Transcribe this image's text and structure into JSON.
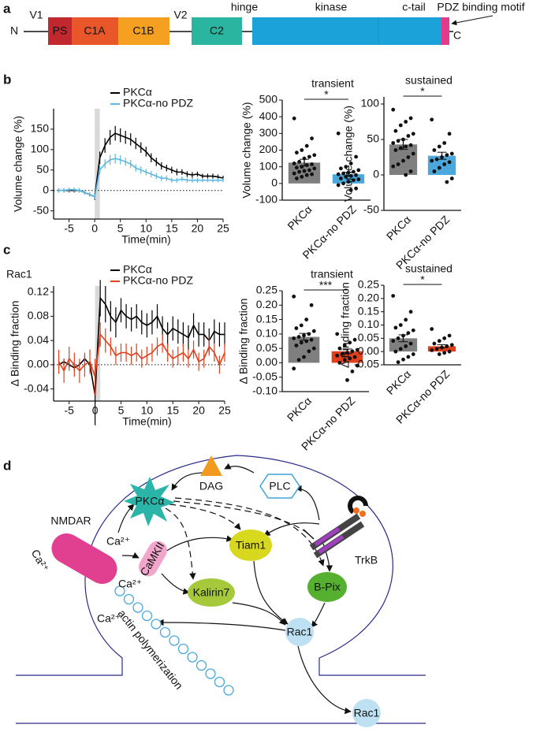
{
  "panel_labels": [
    "a",
    "b",
    "c",
    "d"
  ],
  "domain_diagram": {
    "n_term": "N",
    "v1": "V1",
    "ps": "PS",
    "c1a": "C1A",
    "c1b": "C1B",
    "v2": "V2",
    "c2": "C2",
    "hinge": "hinge",
    "kinase": "kinase",
    "c_tail": "c-tail",
    "pdz": "PDZ binding motif",
    "c_term": "C"
  },
  "chart_data": [
    {
      "type": "line",
      "ylabel": "Volume change (%)",
      "xlabel": "Time(min)",
      "legend": "upper right",
      "x": [
        -7,
        -6,
        -5,
        -4,
        -3,
        -2,
        -1,
        0,
        1,
        2,
        3,
        4,
        5,
        6,
        7,
        8,
        9,
        10,
        11,
        12,
        13,
        14,
        15,
        16,
        17,
        18,
        19,
        20,
        21,
        22,
        23,
        24,
        25
      ],
      "xlim": [
        -8,
        25
      ],
      "xticks": [
        -5,
        0,
        5,
        10,
        15,
        20,
        25
      ],
      "ylim": [
        -70,
        200
      ],
      "yticks": [
        -50,
        0,
        50,
        100,
        150
      ],
      "shaded_span": [
        0,
        1
      ],
      "series": [
        {
          "name": "PKCα",
          "color": "#000000",
          "values": [
            0,
            0,
            0,
            0,
            0,
            -5,
            -10,
            -15,
            80,
            110,
            130,
            140,
            135,
            130,
            125,
            115,
            105,
            95,
            80,
            70,
            60,
            55,
            50,
            45,
            45,
            40,
            38,
            40,
            35,
            35,
            35,
            33,
            30
          ],
          "errors": [
            5,
            5,
            5,
            5,
            5,
            5,
            5,
            8,
            15,
            18,
            18,
            18,
            17,
            16,
            15,
            14,
            13,
            12,
            11,
            10,
            9,
            8,
            8,
            8,
            7,
            7,
            7,
            6,
            6,
            6,
            6,
            6,
            6
          ]
        },
        {
          "name": "PKCα-no PDZ",
          "color": "#5bb8e2",
          "values": [
            0,
            0,
            2,
            2,
            0,
            -5,
            -10,
            -15,
            50,
            65,
            75,
            78,
            75,
            70,
            65,
            55,
            50,
            45,
            40,
            35,
            30,
            30,
            25,
            25,
            28,
            25,
            25,
            25,
            25,
            25,
            25,
            25,
            25
          ],
          "errors": [
            5,
            5,
            5,
            5,
            5,
            5,
            5,
            6,
            10,
            11,
            12,
            12,
            11,
            10,
            10,
            9,
            9,
            8,
            8,
            7,
            7,
            7,
            6,
            6,
            6,
            6,
            6,
            6,
            5,
            5,
            5,
            5,
            5
          ]
        }
      ]
    },
    {
      "type": "bar",
      "title": "transient",
      "ylabel": "Volume change (%)",
      "significance": "*",
      "categories": [
        "PKCα",
        "PKCα-no PDZ"
      ],
      "values": [
        125,
        55
      ],
      "errors": [
        20,
        12
      ],
      "colors": [
        "#7f7f7f",
        "#4aa8dc"
      ],
      "points": [
        [
          390,
          270,
          225,
          200,
          185,
          170,
          160,
          150,
          130,
          120,
          115,
          110,
          100,
          95,
          90,
          80,
          75,
          70,
          60,
          55,
          50,
          40,
          30
        ],
        [
          300,
          160,
          120,
          100,
          90,
          80,
          70,
          65,
          60,
          55,
          50,
          45,
          40,
          30,
          25,
          20,
          10,
          0,
          -10,
          -30,
          -40
        ]
      ],
      "ylim": [
        -100,
        500
      ],
      "yticks": [
        -100,
        0,
        100,
        200,
        300,
        400,
        500
      ]
    },
    {
      "type": "bar",
      "title": "sustained",
      "ylabel": "Volume change (%)",
      "significance": "*",
      "categories": [
        "PKCα",
        "PKCα-no PDZ"
      ],
      "values": [
        43,
        27
      ],
      "errors": [
        7,
        5
      ],
      "colors": [
        "#7f7f7f",
        "#4aa8dc"
      ],
      "points": [
        [
          92,
          80,
          75,
          70,
          62,
          58,
          55,
          50,
          48,
          45,
          42,
          40,
          38,
          35,
          30,
          25,
          20,
          15,
          12,
          5,
          0
        ],
        [
          78,
          58,
          45,
          40,
          35,
          30,
          28,
          25,
          22,
          20,
          18,
          15,
          10,
          5,
          -5,
          -10
        ]
      ],
      "ylim": [
        -50,
        110
      ],
      "yticks": [
        -50,
        0,
        50,
        100
      ]
    },
    {
      "type": "line",
      "ylabel": "Δ Binding fraction",
      "xlabel": "Time(min)",
      "annotation": "Rac1",
      "legend": "upper right",
      "x": [
        -7,
        -6,
        -5,
        -4,
        -3,
        -2,
        -1,
        0,
        1,
        2,
        3,
        4,
        5,
        6,
        7,
        8,
        9,
        10,
        11,
        12,
        13,
        14,
        15,
        16,
        17,
        18,
        19,
        20,
        21,
        22,
        23,
        24,
        25
      ],
      "xlim": [
        -8,
        25
      ],
      "xticks": [
        -5,
        0,
        5,
        10,
        15,
        20,
        25
      ],
      "ylim": [
        -0.06,
        0.13
      ],
      "yticks": [
        -0.04,
        {
          "value": 0,
          "label": "0.00"
        },
        0.04,
        0.08,
        0.12
      ],
      "shaded_span": [
        0,
        1
      ],
      "series": [
        {
          "name": "PKCα",
          "color": "#000000",
          "values": [
            0,
            0.005,
            0,
            -0.005,
            0,
            0.01,
            0,
            -0.05,
            0.11,
            0.1,
            0.08,
            0.07,
            0.09,
            0.08,
            0.075,
            0.08,
            0.07,
            0.065,
            0.07,
            0.08,
            0.06,
            0.05,
            0.06,
            0.055,
            0.05,
            0.045,
            0.065,
            0.05,
            0.05,
            0.04,
            0.055,
            0.05,
            0.05
          ],
          "errors": [
            0.005,
            0.005,
            0.005,
            0.005,
            0.005,
            0.005,
            0.005,
            0.05,
            0.03,
            0.03,
            0.025,
            0.025,
            0.02,
            0.02,
            0.02,
            0.02,
            0.02,
            0.02,
            0.02,
            0.02,
            0.02,
            0.02,
            0.02,
            0.02,
            0.02,
            0.02,
            0.02,
            0.02,
            0.02,
            0.02,
            0.02,
            0.02,
            0.02
          ]
        },
        {
          "name": "PKCα-no PDZ",
          "color": "#e0401c",
          "values": [
            0.005,
            -0.01,
            0.01,
            0,
            -0.01,
            0,
            0.005,
            -0.02,
            0.05,
            0.04,
            0.03,
            0.015,
            0.02,
            0.02,
            0.015,
            0.02,
            0.01,
            0.015,
            0.02,
            0.03,
            0.035,
            0.02,
            0.01,
            0.015,
            0.02,
            0.01,
            0.025,
            0.005,
            0.01,
            0.03,
            0.02,
            0,
            0.02
          ],
          "errors": [
            0.02,
            0.02,
            0.02,
            0.02,
            0.02,
            0.02,
            0.02,
            0.03,
            0.02,
            0.02,
            0.015,
            0.015,
            0.015,
            0.015,
            0.015,
            0.015,
            0.015,
            0.015,
            0.015,
            0.015,
            0.015,
            0.015,
            0.015,
            0.015,
            0.015,
            0.015,
            0.015,
            0.015,
            0.015,
            0.015,
            0.015,
            0.015,
            0.015
          ]
        }
      ]
    },
    {
      "type": "bar",
      "title": "transient",
      "ylabel": "Δ Binding fraction",
      "significance": "***",
      "categories": [
        "PKCα",
        "PKCα-no PDZ"
      ],
      "values": [
        0.09,
        0.04
      ],
      "errors": [
        0.012,
        0.008
      ],
      "colors": [
        "#7f7f7f",
        "#e0401c"
      ],
      "points": [
        [
          0.23,
          0.2,
          0.15,
          0.13,
          0.12,
          0.11,
          0.1,
          0.095,
          0.09,
          0.085,
          0.08,
          0.075,
          0.07,
          0.06,
          0.05,
          0.04,
          0.02,
          0.01,
          -0.02
        ],
        [
          0.1,
          0.08,
          0.07,
          0.06,
          0.05,
          0.045,
          0.04,
          0.035,
          0.03,
          0.025,
          0.02,
          0.015,
          0.01,
          0,
          -0.01,
          -0.03,
          -0.06
        ]
      ],
      "ylim": [
        -0.1,
        0.25
      ],
      "yticks": [
        {
          "value": -0.1,
          "label": "-0.10"
        },
        -0.05,
        {
          "value": 0,
          "label": "0.00"
        },
        0.05,
        {
          "value": 0.1,
          "label": "0.10"
        },
        0.15,
        {
          "value": 0.2,
          "label": "0.20"
        },
        0.25
      ]
    },
    {
      "type": "bar",
      "title": "sustained",
      "ylabel": "Δ Binding fraction",
      "significance": "*",
      "categories": [
        "PKCα",
        "PKCα-no PDZ"
      ],
      "values": [
        0.05,
        0.02
      ],
      "errors": [
        0.013,
        0.006
      ],
      "colors": [
        "#7f7f7f",
        "#e0401c"
      ],
      "points": [
        [
          0.21,
          0.15,
          0.12,
          0.1,
          0.09,
          0.08,
          0.07,
          0.06,
          0.05,
          0.04,
          0.03,
          0.02,
          0.01,
          0,
          -0.01,
          -0.02,
          -0.03,
          -0.04
        ],
        [
          0.085,
          0.06,
          0.05,
          0.04,
          0.03,
          0.025,
          0.02,
          0.015,
          0.01,
          0.005,
          0,
          -0.005,
          -0.01
        ]
      ],
      "ylim": [
        -0.05,
        0.25
      ],
      "yticks": [
        -0.05,
        {
          "value": 0,
          "label": "0.00"
        },
        0.05,
        {
          "value": 0.1,
          "label": "0.10"
        },
        0.15,
        {
          "value": 0.2,
          "label": "0.20"
        },
        0.25
      ]
    }
  ],
  "pathway_diagram": {
    "dag": "DAG",
    "plc": "PLC",
    "pkc": "PKCα",
    "trkb": "TrkB",
    "nmdar": "NMDAR",
    "ca_in": "Ca²⁺",
    "ca_pkc": "Ca²⁺",
    "ca_camk": "Ca²⁺",
    "ca_low": "Ca²⁺",
    "camkii": "CaMKII",
    "tiam1": "Tiam1",
    "kalirin7": "Kalirin7",
    "bpix": "B-Pix",
    "rac1": "Rac1",
    "rac1_out": "Rac1",
    "actin": "actin polymerization"
  }
}
